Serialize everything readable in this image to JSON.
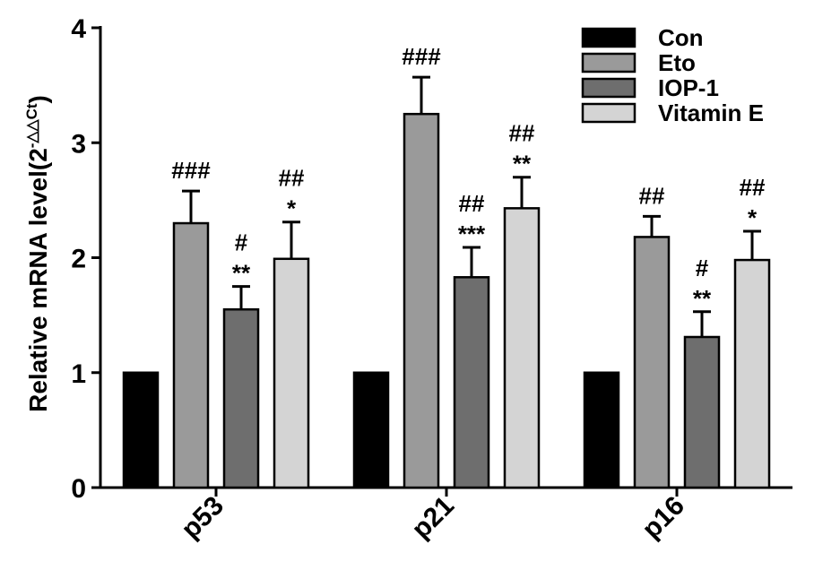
{
  "chart_data": {
    "type": "bar",
    "ylabel": {
      "main": "Relative mRNA level(2",
      "superscript": "-△△Ct",
      "close": ")"
    },
    "ylim": [
      0,
      4
    ],
    "yticks": [
      "0",
      "1",
      "2",
      "3",
      "4"
    ],
    "categories": [
      "p53",
      "p21",
      "p16"
    ],
    "grid": false,
    "legend_position": "top-right",
    "series": [
      {
        "name": "Con",
        "color": "#000000",
        "values": [
          1.0,
          1.0,
          1.0
        ],
        "errors": [
          0,
          0,
          0
        ],
        "annotations": [
          [],
          [],
          []
        ]
      },
      {
        "name": "Eto",
        "color": "#9a9a9a",
        "values": [
          2.3,
          3.25,
          2.18
        ],
        "errors": [
          0.28,
          0.32,
          0.18
        ],
        "annotations": [
          [
            "###"
          ],
          [
            "###"
          ],
          [
            "##"
          ]
        ]
      },
      {
        "name": "IOP-1",
        "color": "#6e6e6e",
        "values": [
          1.55,
          1.83,
          1.31
        ],
        "errors": [
          0.2,
          0.26,
          0.22
        ],
        "annotations": [
          [
            "#",
            "**"
          ],
          [
            "##",
            "***"
          ],
          [
            "#",
            "**"
          ]
        ]
      },
      {
        "name": "Vitamin E",
        "color": "#d4d4d4",
        "values": [
          1.99,
          2.43,
          1.98
        ],
        "errors": [
          0.32,
          0.27,
          0.25
        ],
        "annotations": [
          [
            "##",
            "*"
          ],
          [
            "##",
            "**"
          ],
          [
            "##",
            "*"
          ]
        ]
      }
    ]
  }
}
